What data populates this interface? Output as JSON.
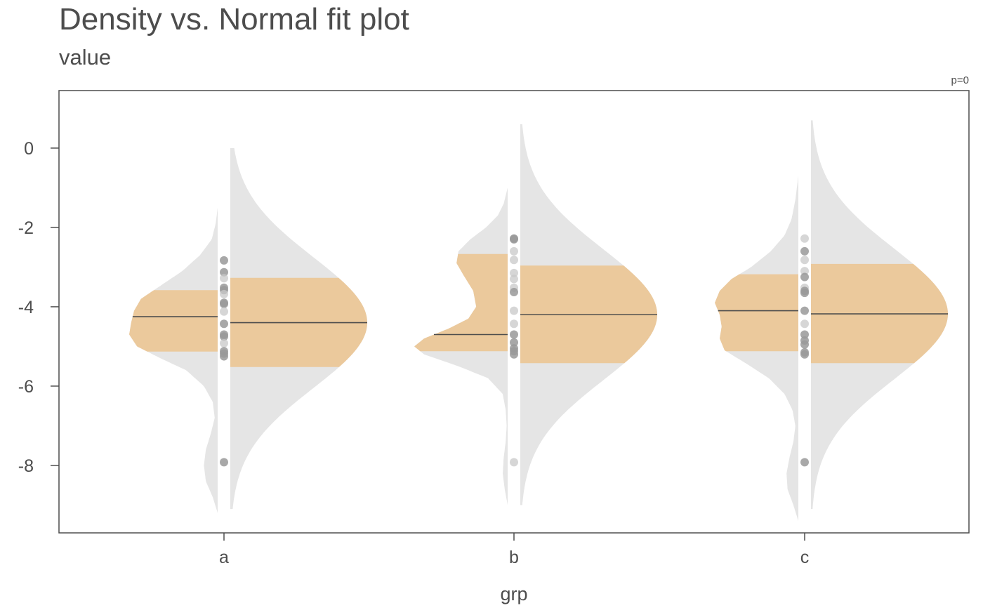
{
  "chart_data": {
    "type": "split-violin",
    "title": "Density vs. Normal fit plot",
    "subtitle": "value",
    "xlabel": "grp",
    "ylabel": "",
    "annotation": "p=0",
    "categories": [
      "a",
      "b",
      "c"
    ],
    "y_ticks": [
      0,
      -2,
      -4,
      -6,
      -8
    ],
    "ylim": [
      -9.7,
      1.45
    ],
    "grid": false,
    "colors": {
      "density_fill": "#e5e5e5",
      "iqr_fill": "#ebc99c",
      "median_line": "#4d4d4d",
      "point_dark": "#999999",
      "point_light": "#c8c8c8",
      "frame": "#4d4d4d",
      "text": "#4d4d4d"
    },
    "groups": [
      {
        "name": "a",
        "density": {
          "ymin": -9.2,
          "ymax": -1.5,
          "profile": [
            [
              -9.2,
              0
            ],
            [
              -8.8,
              0.05
            ],
            [
              -8.4,
              0.12
            ],
            [
              -8.0,
              0.14
            ],
            [
              -7.6,
              0.12
            ],
            [
              -7.2,
              0.07
            ],
            [
              -6.8,
              0.03
            ],
            [
              -6.4,
              0.05
            ],
            [
              -6.0,
              0.14
            ],
            [
              -5.6,
              0.32
            ],
            [
              -5.3,
              0.58
            ],
            [
              -5.0,
              0.82
            ],
            [
              -4.7,
              0.9
            ],
            [
              -4.4,
              0.88
            ],
            [
              -4.1,
              0.85
            ],
            [
              -3.8,
              0.78
            ],
            [
              -3.5,
              0.6
            ],
            [
              -3.1,
              0.36
            ],
            [
              -2.7,
              0.18
            ],
            [
              -2.3,
              0.06
            ],
            [
              -1.9,
              0.02
            ],
            [
              -1.5,
              0
            ]
          ],
          "q1": -5.13,
          "q3": -3.58,
          "median": -4.25
        },
        "normal_fit": {
          "mean": -4.4,
          "sd": 1.65,
          "ymin": -9.1,
          "ymax": 0.0,
          "q1": -5.52,
          "q3": -3.27,
          "median": -4.4
        },
        "points": [
          {
            "y": -2.83,
            "shade": "dark"
          },
          {
            "y": -3.13,
            "shade": "dark"
          },
          {
            "y": -3.28,
            "shade": "light"
          },
          {
            "y": -3.52,
            "shade": "dark"
          },
          {
            "y": -3.58,
            "shade": "dark"
          },
          {
            "y": -3.68,
            "shade": "light"
          },
          {
            "y": -3.9,
            "shade": "dark"
          },
          {
            "y": -3.93,
            "shade": "dark"
          },
          {
            "y": -4.12,
            "shade": "light"
          },
          {
            "y": -4.43,
            "shade": "dark"
          },
          {
            "y": -4.7,
            "shade": "dark"
          },
          {
            "y": -4.75,
            "shade": "dark"
          },
          {
            "y": -4.92,
            "shade": "light"
          },
          {
            "y": -5.12,
            "shade": "dark"
          },
          {
            "y": -5.18,
            "shade": "dark"
          },
          {
            "y": -5.25,
            "shade": "dark"
          },
          {
            "y": -7.92,
            "shade": "dark"
          }
        ]
      },
      {
        "name": "b",
        "density": {
          "ymin": -9.0,
          "ymax": -1.0,
          "profile": [
            [
              -9.0,
              0
            ],
            [
              -8.6,
              0.03
            ],
            [
              -8.2,
              0.05
            ],
            [
              -7.8,
              0.04
            ],
            [
              -7.4,
              0.02
            ],
            [
              -7.0,
              0.01
            ],
            [
              -6.6,
              0.02
            ],
            [
              -6.2,
              0.05
            ],
            [
              -5.8,
              0.2
            ],
            [
              -5.5,
              0.5
            ],
            [
              -5.2,
              0.85
            ],
            [
              -5.0,
              0.95
            ],
            [
              -4.8,
              0.85
            ],
            [
              -4.55,
              0.6
            ],
            [
              -4.3,
              0.4
            ],
            [
              -4.0,
              0.32
            ],
            [
              -3.6,
              0.35
            ],
            [
              -3.2,
              0.45
            ],
            [
              -2.9,
              0.52
            ],
            [
              -2.6,
              0.5
            ],
            [
              -2.3,
              0.38
            ],
            [
              -2.0,
              0.22
            ],
            [
              -1.7,
              0.1
            ],
            [
              -1.4,
              0.04
            ],
            [
              -1.0,
              0
            ]
          ],
          "q1": -5.12,
          "q3": -2.67,
          "median": -4.7
        },
        "normal_fit": {
          "mean": -4.2,
          "sd": 1.65,
          "ymin": -9.0,
          "ymax": 0.6,
          "q1": -5.42,
          "q3": -2.96,
          "median": -4.2
        },
        "points": [
          {
            "y": -2.28,
            "shade": "dark"
          },
          {
            "y": -2.3,
            "shade": "dark"
          },
          {
            "y": -2.6,
            "shade": "light"
          },
          {
            "y": -2.82,
            "shade": "light"
          },
          {
            "y": -3.15,
            "shade": "light"
          },
          {
            "y": -3.3,
            "shade": "light"
          },
          {
            "y": -3.52,
            "shade": "light"
          },
          {
            "y": -3.63,
            "shade": "dark"
          },
          {
            "y": -4.1,
            "shade": "light"
          },
          {
            "y": -4.43,
            "shade": "light"
          },
          {
            "y": -4.7,
            "shade": "dark"
          },
          {
            "y": -4.9,
            "shade": "dark"
          },
          {
            "y": -5.05,
            "shade": "dark"
          },
          {
            "y": -5.12,
            "shade": "dark"
          },
          {
            "y": -5.2,
            "shade": "dark"
          },
          {
            "y": -7.92,
            "shade": "light"
          }
        ]
      },
      {
        "name": "c",
        "density": {
          "ymin": -9.4,
          "ymax": -0.7,
          "profile": [
            [
              -9.4,
              0
            ],
            [
              -9.0,
              0.05
            ],
            [
              -8.6,
              0.11
            ],
            [
              -8.2,
              0.12
            ],
            [
              -7.8,
              0.09
            ],
            [
              -7.4,
              0.05
            ],
            [
              -7.0,
              0.03
            ],
            [
              -6.6,
              0.06
            ],
            [
              -6.2,
              0.14
            ],
            [
              -5.8,
              0.3
            ],
            [
              -5.4,
              0.55
            ],
            [
              -5.1,
              0.75
            ],
            [
              -4.8,
              0.8
            ],
            [
              -4.5,
              0.78
            ],
            [
              -4.2,
              0.8
            ],
            [
              -3.9,
              0.85
            ],
            [
              -3.6,
              0.8
            ],
            [
              -3.3,
              0.68
            ],
            [
              -3.0,
              0.48
            ],
            [
              -2.6,
              0.28
            ],
            [
              -2.2,
              0.14
            ],
            [
              -1.8,
              0.07
            ],
            [
              -1.3,
              0.03
            ],
            [
              -0.7,
              0
            ]
          ],
          "q1": -5.12,
          "q3": -3.18,
          "median": -4.1
        },
        "normal_fit": {
          "mean": -4.18,
          "sd": 1.65,
          "ymin": -9.1,
          "ymax": 0.7,
          "q1": -5.42,
          "q3": -2.92,
          "median": -4.18
        },
        "points": [
          {
            "y": -2.28,
            "shade": "light"
          },
          {
            "y": -2.6,
            "shade": "dark"
          },
          {
            "y": -2.82,
            "shade": "light"
          },
          {
            "y": -3.1,
            "shade": "light"
          },
          {
            "y": -3.25,
            "shade": "dark"
          },
          {
            "y": -3.52,
            "shade": "light"
          },
          {
            "y": -3.6,
            "shade": "dark"
          },
          {
            "y": -3.65,
            "shade": "dark"
          },
          {
            "y": -4.1,
            "shade": "dark"
          },
          {
            "y": -4.43,
            "shade": "light"
          },
          {
            "y": -4.7,
            "shade": "dark"
          },
          {
            "y": -4.85,
            "shade": "dark"
          },
          {
            "y": -4.95,
            "shade": "dark"
          },
          {
            "y": -5.15,
            "shade": "dark"
          },
          {
            "y": -5.2,
            "shade": "dark"
          },
          {
            "y": -7.92,
            "shade": "dark"
          }
        ]
      }
    ]
  }
}
